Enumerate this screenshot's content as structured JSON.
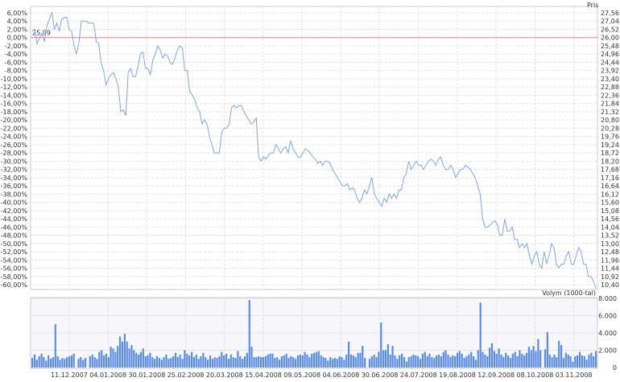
{
  "chart_data": [
    {
      "type": "line",
      "ylabel_right": "Pris",
      "reference_label": "25,99",
      "reference_value": 0,
      "ylim": [
        -60,
        6
      ],
      "grid": true,
      "colors": {
        "line": "#7fa6f0",
        "reference": "#f08080"
      },
      "left_ticks": [
        6,
        4,
        2,
        0,
        -2,
        -4,
        -6,
        -8,
        -10,
        -12,
        -14,
        -16,
        -18,
        -20,
        -22,
        -24,
        -26,
        -28,
        -30,
        -32,
        -34,
        -36,
        -38,
        -40,
        -42,
        -44,
        -46,
        -48,
        -50,
        -52,
        -54,
        -56,
        -58,
        -60
      ],
      "left_tick_labels": [
        "6,00%",
        "4,00%",
        "2,00%",
        "0,00%",
        "-2,00%",
        "-4,00%",
        "-6,00%",
        "-8,00%",
        "-10,00%",
        "-12,00%",
        "-14,00%",
        "-16,00%",
        "-18,00%",
        "-20,00%",
        "-22,00%",
        "-24,00%",
        "-26,00%",
        "-28,00%",
        "-30,00%",
        "-32,00%",
        "-34,00%",
        "-36,00%",
        "-38,00%",
        "-40,00%",
        "-42,00%",
        "-44,00%",
        "-46,00%",
        "-48,00%",
        "-50,00%",
        "-52,00%",
        "-54,00%",
        "-56,00%",
        "-58,00%",
        "-60,00%"
      ],
      "right_tick_labels": [
        "27,56",
        "27,04",
        "26,52",
        "26,00",
        "25,48",
        "24,96",
        "24,44",
        "23,92",
        "23,40",
        "22,88",
        "22,36",
        "21,84",
        "21,32",
        "20,80",
        "20,28",
        "19,76",
        "19,24",
        "18,72",
        "18,20",
        "17,68",
        "17,16",
        "16,64",
        "16,12",
        "15,60",
        "15,08",
        "14,56",
        "14,04",
        "13,52",
        "13,00",
        "12,48",
        "11,96",
        "11,44",
        "10,92",
        "10,40"
      ],
      "x_tick_labels": [
        "11.12.2007",
        "04.01.2008",
        "30.01.2008",
        "25.02.2008",
        "20.03.2008",
        "15.04.2008",
        "09.05.2008",
        "04.06.2008",
        "30.06.2008",
        "24.07.2008",
        "19.08.2008",
        "12.09.2008",
        "08.10.2008",
        "03.11.2008"
      ],
      "values_pct": [
        1.5,
        2,
        -1.5,
        0,
        1,
        -1,
        3,
        4.5,
        6.2,
        2,
        3.5,
        1.5,
        4.5,
        4.8,
        5,
        2,
        1.5,
        -2,
        -4,
        -1,
        4,
        4,
        4,
        3.5,
        3.5,
        3.5,
        -1,
        -1.5,
        -6,
        -8,
        -11.5,
        -10,
        -9,
        -8.5,
        -10,
        -12,
        -18,
        -17.5,
        -19,
        -8.5,
        -7.5,
        -9.5,
        -9.5,
        -7,
        -4,
        -3.5,
        -7.5,
        -7.5,
        -9,
        -5.5,
        -4,
        -2,
        -3,
        -5,
        -4,
        -4.5,
        -6,
        -6.5,
        -5,
        -3,
        -2,
        -2.5,
        -8,
        -8,
        -13,
        -14,
        -15,
        -17,
        -18,
        -21,
        -20,
        -21,
        -24,
        -26,
        -28,
        -28,
        -28,
        -23,
        -22,
        -22,
        -21,
        -17,
        -16.5,
        -17,
        -16.5,
        -16.5,
        -18,
        -19,
        -20,
        -21,
        -20.5,
        -19.5,
        -29,
        -30,
        -29,
        -29.5,
        -28.5,
        -28,
        -28,
        -26,
        -27,
        -28,
        -27,
        -26.5,
        -28,
        -25,
        -27,
        -28,
        -29,
        -29,
        -28,
        -27,
        -27.5,
        -28,
        -29,
        -29.5,
        -30.5,
        -30,
        -31,
        -30,
        -30,
        -30.5,
        -32,
        -33,
        -34,
        -35,
        -36,
        -36,
        -35.5,
        -37,
        -36.5,
        -37,
        -39,
        -40,
        -39,
        -37,
        -38,
        -36,
        -34,
        -38,
        -39,
        -40,
        -41,
        -39,
        -40,
        -38,
        -39,
        -38,
        -39,
        -37,
        -37,
        -34,
        -33,
        -30,
        -32,
        -31,
        -30,
        -31,
        -31,
        -32,
        -31,
        -30,
        -29.5,
        -30,
        -31,
        -29.5,
        -29,
        -31,
        -32,
        -32,
        -31,
        -32,
        -34,
        -33,
        -32,
        -32,
        -31,
        -31.5,
        -32,
        -33,
        -34,
        -36,
        -38,
        -44,
        -46,
        -46,
        -45.5,
        -45,
        -44.5,
        -45.5,
        -48,
        -48,
        -44,
        -47,
        -47,
        -46,
        -49,
        -49,
        -51,
        -50,
        -51,
        -50,
        -53,
        -55,
        -53,
        -52,
        -55,
        -56,
        -52,
        -55,
        -53,
        -50,
        -51,
        -55,
        -56,
        -55,
        -55,
        -53,
        -52,
        -55,
        -55,
        -53,
        -51,
        -52,
        -55,
        -55,
        -58,
        -58,
        -59,
        -61
      ]
    },
    {
      "type": "bar",
      "ylabel": "Volym (1000-tal)",
      "ylim": [
        0,
        8000
      ],
      "y_ticks": [
        8000,
        6000,
        4000,
        2000,
        0
      ],
      "y_tick_labels": [
        "8.000",
        "6.000",
        "4.000",
        "2.000",
        "0"
      ],
      "colors": {
        "bar": "#5b8de8"
      },
      "values": [
        1100,
        1500,
        900,
        1300,
        1600,
        1200,
        800,
        1400,
        1000,
        1200,
        5000,
        1300,
        900,
        1100,
        1000,
        1200,
        1300,
        1400,
        1600,
        0,
        1000,
        1200,
        900,
        1100,
        0,
        1300,
        1500,
        1200,
        1000,
        1800,
        2000,
        1400,
        1600,
        1200,
        2400,
        2200,
        1800,
        2500,
        3600,
        3000,
        3900,
        3000,
        2200,
        2600,
        2000,
        1700,
        1500,
        1800,
        2200,
        1300,
        1400,
        1700,
        1200,
        1000,
        1300,
        1100,
        900,
        1200,
        1500,
        1000,
        1100,
        1300,
        1700,
        1200,
        1500,
        1000,
        2000,
        1600,
        1400,
        1800,
        1200,
        1500,
        1000,
        1300,
        1700,
        1200,
        900,
        1400,
        1000,
        1200,
        1100,
        1300,
        1800,
        1400,
        1600,
        1000,
        1500,
        1200,
        1100,
        1900,
        1300,
        1000,
        1300,
        1700,
        7800,
        2400,
        1200,
        1200,
        1300,
        1200,
        1200,
        1300,
        1500,
        1600,
        1600,
        1100,
        1200,
        900,
        1300,
        1400,
        1600,
        1100,
        1300,
        1200,
        1000,
        1400,
        1500,
        1400,
        1800,
        1500,
        1200,
        1600,
        1700,
        1800,
        1900,
        1400,
        1200,
        1100,
        800,
        1200,
        1000,
        1100,
        1000,
        1300,
        1200,
        900,
        1500,
        3000,
        1500,
        1400,
        1200,
        1700,
        1700,
        2500,
        1100,
        0,
        1000,
        1300,
        1500,
        1200,
        1800,
        5200,
        2000,
        2000,
        2700,
        1500,
        2500,
        1400,
        1000,
        1400,
        1600,
        1200,
        700,
        1200,
        1300,
        1500,
        1400,
        1300,
        1000,
        1600,
        1800,
        1300,
        1600,
        1200,
        1100,
        1400,
        1500,
        1300,
        1800,
        2000,
        1500,
        1200,
        1400,
        1300,
        1700,
        1900,
        1600,
        1100,
        1300,
        1500,
        1800,
        1300,
        900,
        2000,
        7500,
        1800,
        1500,
        1300,
        2300,
        2800,
        1900,
        1600,
        2200,
        1500,
        1200,
        1700,
        1400,
        1100,
        1600,
        1800,
        1300,
        2000,
        1600,
        1400,
        1700,
        2400,
        2000,
        2500,
        1900,
        3300,
        2000,
        0,
        2100,
        4100,
        1500,
        1200,
        1500,
        1200,
        3100,
        2600,
        1100,
        1700,
        1500,
        1300,
        700,
        1300,
        1400,
        1800,
        1400,
        1300,
        900,
        1500,
        1700,
        1300,
        1900
      ]
    }
  ]
}
